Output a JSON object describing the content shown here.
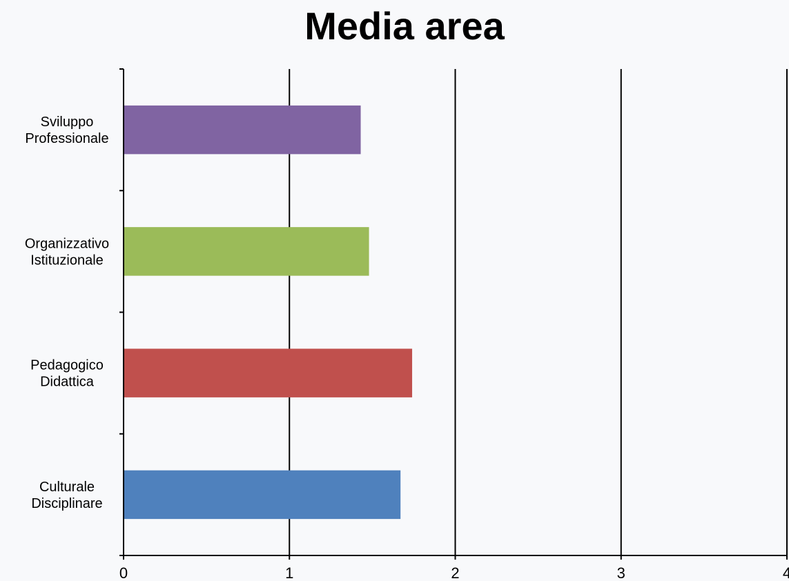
{
  "chart_data": {
    "type": "bar",
    "orientation": "horizontal",
    "title": "Media area",
    "xlabel": "",
    "ylabel": "",
    "categories": [
      [
        "Culturale",
        "Disciplinare"
      ],
      [
        "Pedagogico",
        "Didattica"
      ],
      [
        "Organizzativo",
        "Istituzionale"
      ],
      [
        "Sviluppo",
        "Professionale"
      ]
    ],
    "values": [
      1.67,
      1.74,
      1.48,
      1.43
    ],
    "colors": [
      "#4f81bd",
      "#c0504d",
      "#9bbb59",
      "#8064a2"
    ],
    "xlim": [
      0,
      4
    ],
    "xticks": [
      "0",
      "1",
      "2",
      "3",
      "4"
    ],
    "grid": "vertical",
    "legend": "none"
  }
}
